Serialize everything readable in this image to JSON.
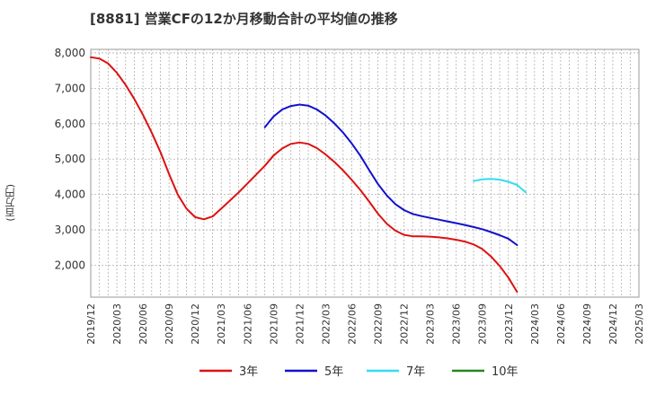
{
  "chart_data": {
    "type": "line",
    "title": "[8881]  営業CFの12か月移動合計の平均値の推移",
    "ylabel": "(百万円)",
    "xlabel": "",
    "ylim": [
      1100,
      8100
    ],
    "yticks": [
      2000,
      3000,
      4000,
      5000,
      6000,
      7000,
      8000
    ],
    "ytick_labels": [
      "2,000",
      "3,000",
      "4,000",
      "5,000",
      "6,000",
      "7,000",
      "8,000"
    ],
    "xtick_labels": [
      "2019/12",
      "2020/03",
      "2020/06",
      "2020/09",
      "2020/12",
      "2021/03",
      "2021/06",
      "2021/09",
      "2021/12",
      "2022/03",
      "2022/06",
      "2022/09",
      "2022/12",
      "2023/03",
      "2023/06",
      "2023/09",
      "2023/12",
      "2024/03",
      "2024/06",
      "2024/09",
      "2024/12",
      "2025/03"
    ],
    "grid": true,
    "legend_position": "bottom",
    "series": [
      {
        "name": "3年",
        "color": "#dd1111",
        "start": "2019/12",
        "values": [
          7880,
          7840,
          7700,
          7440,
          7100,
          6700,
          6250,
          5750,
          5200,
          4580,
          4000,
          3600,
          3360,
          3300,
          3380,
          3600,
          3830,
          4060,
          4310,
          4560,
          4810,
          5100,
          5300,
          5430,
          5470,
          5430,
          5310,
          5130,
          4920,
          4680,
          4410,
          4120,
          3800,
          3460,
          3180,
          2980,
          2860,
          2820,
          2820,
          2810,
          2790,
          2760,
          2720,
          2670,
          2590,
          2460,
          2250,
          1980,
          1650,
          1250
        ]
      },
      {
        "name": "5年",
        "color": "#1111cc",
        "start": "2021/08",
        "values": [
          5900,
          6200,
          6400,
          6500,
          6540,
          6510,
          6400,
          6230,
          6010,
          5750,
          5440,
          5090,
          4690,
          4300,
          3980,
          3730,
          3560,
          3450,
          3390,
          3340,
          3290,
          3240,
          3190,
          3140,
          3080,
          3020,
          2940,
          2850,
          2750,
          2570
        ]
      },
      {
        "name": "7年",
        "color": "#33ddee",
        "start": "2023/08",
        "values": [
          4380,
          4430,
          4440,
          4420,
          4360,
          4270,
          4060
        ]
      },
      {
        "name": "10年",
        "color": "#228822",
        "start": "2024/03",
        "values": []
      }
    ]
  }
}
